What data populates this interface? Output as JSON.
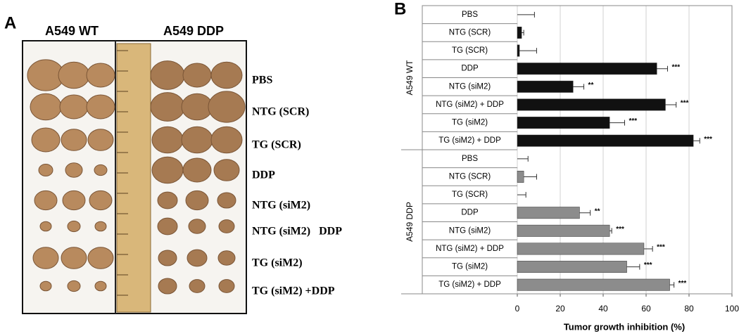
{
  "panel_a": {
    "panel_label": "A",
    "column_titles": [
      "A549 WT",
      "A549 DDP"
    ],
    "row_labels": [
      "PBS",
      "NTG (SCR)",
      "TG (SCR)",
      "DDP",
      "NTG (siM2)",
      "NTG (siM2)   DDP",
      "TG (siM2)",
      "TG (siM2) +DDP"
    ]
  },
  "chart_data": {
    "type": "bar",
    "orientation": "horizontal",
    "panel_label": "B",
    "x_label": "Tumor growth inhibition (%)",
    "xlim": [
      0,
      100
    ],
    "xticks": [
      0,
      20,
      40,
      60,
      80,
      100
    ],
    "grid": true,
    "groups": [
      {
        "name": "A549 WT",
        "color": "#111111",
        "categories": [
          "PBS",
          "NTG (SCR)",
          "TG (SCR)",
          "DDP",
          "NTG (siM2)",
          "NTG (siM2) + DDP",
          "TG (siM2)",
          "TG (siM2) + DDP"
        ],
        "values": [
          0,
          2,
          1,
          65,
          26,
          69,
          43,
          82
        ],
        "errors": [
          8,
          1,
          8,
          5,
          5,
          5,
          7,
          3
        ],
        "significance": [
          null,
          null,
          null,
          "***",
          "**",
          "***",
          "***",
          "***"
        ]
      },
      {
        "name": "A549 DDP",
        "color": "#8c8c8c",
        "categories": [
          "PBS",
          "NTG (SCR)",
          "TG (SCR)",
          "DDP",
          "NTG (siM2)",
          "NTG (siM2) + DDP",
          "TG (siM2)",
          "TG (siM2) + DDP"
        ],
        "values": [
          0,
          3,
          0,
          29,
          43,
          59,
          51,
          71
        ],
        "errors": [
          5,
          6,
          4,
          5,
          1,
          4,
          6,
          2
        ],
        "significance": [
          null,
          null,
          null,
          "**",
          "***",
          "***",
          "***",
          "***"
        ]
      }
    ]
  }
}
